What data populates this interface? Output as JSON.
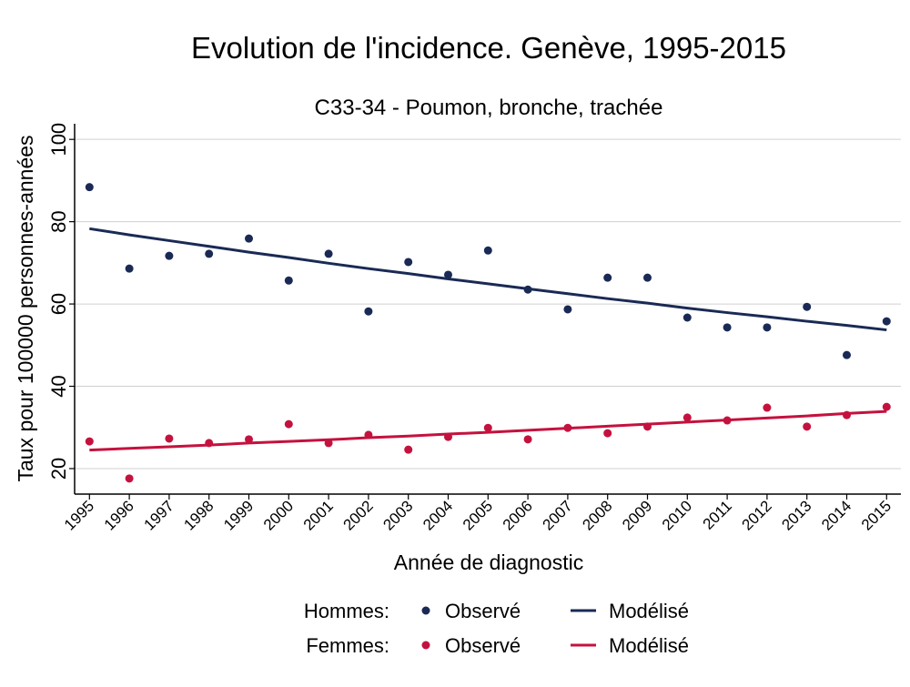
{
  "chart_data": {
    "type": "scatter",
    "title": "Evolution de l'incidence. Genève, 1995-2015",
    "subtitle": "C33-34 - Poumon, bronche, trachée",
    "xlabel": "Année de diagnostic",
    "ylabel": "Taux pour 100000 personnes-années",
    "x": [
      1995,
      1996,
      1997,
      1998,
      1999,
      2000,
      2001,
      2002,
      2003,
      2004,
      2005,
      2006,
      2007,
      2008,
      2009,
      2010,
      2011,
      2012,
      2013,
      2014,
      2015
    ],
    "yticks": [
      20,
      40,
      60,
      80,
      100
    ],
    "ylim": [
      13.8,
      103.8
    ],
    "grid": true,
    "legend_position": "bottom",
    "series": [
      {
        "group": "Hommes:",
        "name": "Observé",
        "kind": "points",
        "color": "#1a2a55",
        "values": [
          88.4,
          68.6,
          71.7,
          72.2,
          75.9,
          65.7,
          72.2,
          58.2,
          70.2,
          67.1,
          73.0,
          63.5,
          58.7,
          66.4,
          66.4,
          56.7,
          54.3,
          54.3,
          59.3,
          47.6,
          55.8
        ]
      },
      {
        "group": "Hommes:",
        "name": "Modélisé",
        "kind": "line",
        "color": "#1a2a55",
        "values": [
          78.3,
          76.8,
          75.4,
          74.0,
          72.6,
          71.3,
          69.9,
          68.6,
          67.4,
          66.1,
          64.9,
          63.7,
          62.5,
          61.3,
          60.2,
          59.0,
          57.9,
          56.9,
          55.8,
          54.8,
          53.7
        ]
      },
      {
        "group": "Femmes:",
        "name": "Observé",
        "kind": "points",
        "color": "#c4123e",
        "values": [
          26.6,
          17.6,
          27.3,
          26.2,
          27.1,
          30.8,
          26.2,
          28.2,
          24.6,
          27.7,
          29.9,
          27.1,
          29.9,
          28.6,
          30.2,
          32.4,
          31.7,
          34.8,
          30.2,
          33.0,
          35.0
        ]
      },
      {
        "group": "Femmes:",
        "name": "Modélisé",
        "kind": "line",
        "color": "#c4123e",
        "values": [
          24.5,
          24.9,
          25.3,
          25.7,
          26.2,
          26.6,
          27.0,
          27.5,
          27.9,
          28.4,
          28.8,
          29.3,
          29.8,
          30.3,
          30.8,
          31.3,
          31.8,
          32.3,
          32.8,
          33.4,
          33.9
        ]
      }
    ]
  }
}
